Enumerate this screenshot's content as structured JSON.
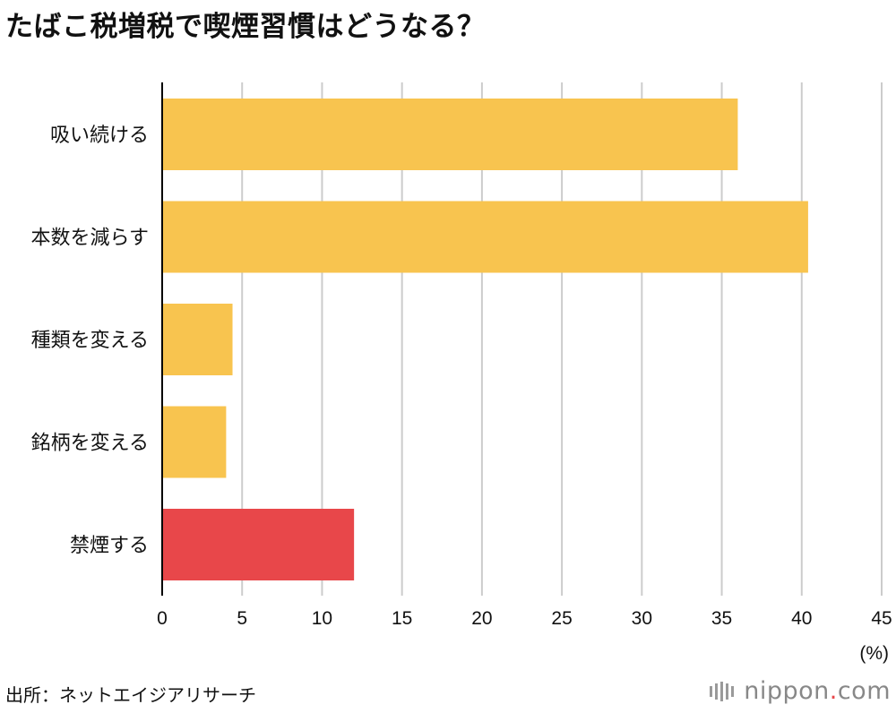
{
  "title": "たばこ税増税で喫煙習慣はどうなる？",
  "unit_label": "(%)",
  "source": "出所：ネットエイジアリサーチ",
  "logo": {
    "name": "nippon",
    "dot": ".",
    "suffix": "com"
  },
  "colors": {
    "default_bar": "#F8C44F",
    "highlight_bar": "#E8474A",
    "grid": "#cccccc",
    "axis": "#000000"
  },
  "chart_data": {
    "type": "bar",
    "orientation": "horizontal",
    "categories": [
      "吸い続ける",
      "本数を減らす",
      "種類を変える",
      "銘柄を変える",
      "禁煙する"
    ],
    "values": [
      36,
      40.4,
      4.4,
      4.0,
      12
    ],
    "highlight_index": 4,
    "xlim": [
      0,
      45
    ],
    "xticks": [
      0,
      5,
      10,
      15,
      20,
      25,
      30,
      35,
      40,
      45
    ],
    "grid": true
  }
}
